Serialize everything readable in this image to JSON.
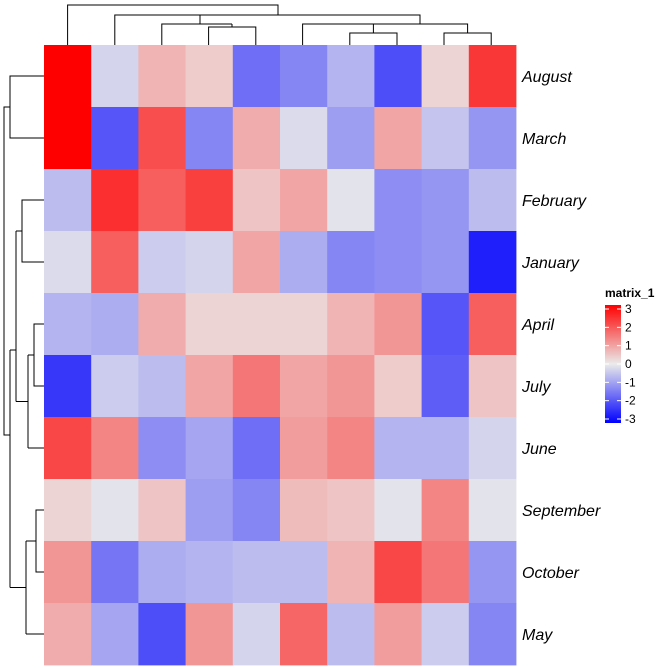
{
  "chart_data": {
    "type": "heatmap",
    "rows": [
      "August",
      "March",
      "February",
      "January",
      "April",
      "July",
      "June",
      "September",
      "October",
      "May"
    ],
    "columns": [
      "",
      "",
      "",
      "",
      "",
      "",
      "",
      "",
      "",
      ""
    ],
    "values": [
      [
        3.0,
        -0.3,
        0.7,
        0.4,
        -1.6,
        -1.3,
        -0.7,
        -2.0,
        0.3,
        2.3
      ],
      [
        3.0,
        -1.9,
        2.0,
        -1.3,
        0.8,
        -0.2,
        -1.0,
        0.9,
        -0.5,
        -1.1
      ],
      [
        -0.6,
        2.4,
        1.8,
        2.2,
        0.5,
        0.9,
        -0.1,
        -1.2,
        -1.1,
        -0.6
      ],
      [
        -0.2,
        1.8,
        -0.4,
        -0.3,
        0.9,
        -0.8,
        -1.3,
        -1.2,
        -1.1,
        -2.6
      ],
      [
        -0.7,
        -0.8,
        0.8,
        0.3,
        0.3,
        0.3,
        0.7,
        1.1,
        -1.9,
        1.8
      ],
      [
        -2.3,
        -0.4,
        -0.6,
        0.9,
        1.5,
        0.9,
        1.1,
        0.4,
        -1.8,
        0.5
      ],
      [
        2.1,
        1.3,
        -1.2,
        -0.9,
        -1.6,
        1.0,
        1.3,
        -0.7,
        -0.7,
        -0.3
      ],
      [
        0.3,
        -0.1,
        0.5,
        -1.0,
        -1.3,
        0.6,
        0.5,
        -0.1,
        1.3,
        -0.1
      ],
      [
        1.1,
        -1.5,
        -0.8,
        -0.7,
        -0.6,
        -0.6,
        0.7,
        2.1,
        1.5,
        -1.1
      ],
      [
        0.8,
        -0.9,
        -2.0,
        1.1,
        -0.3,
        1.7,
        -0.6,
        1.0,
        -0.4,
        -1.3
      ]
    ],
    "color_scale": {
      "min": -3,
      "mid": 0,
      "max": 3,
      "low_color": "#0000ff",
      "mid_color": "#ebebeb",
      "high_color": "#ff0000"
    },
    "legend": {
      "title": "matrix_1",
      "ticks": [
        "3",
        "2",
        "1",
        "0",
        "-1",
        "-2",
        "-3"
      ],
      "placement": "right"
    },
    "row_dendrogram": true,
    "column_dendrogram": true
  }
}
